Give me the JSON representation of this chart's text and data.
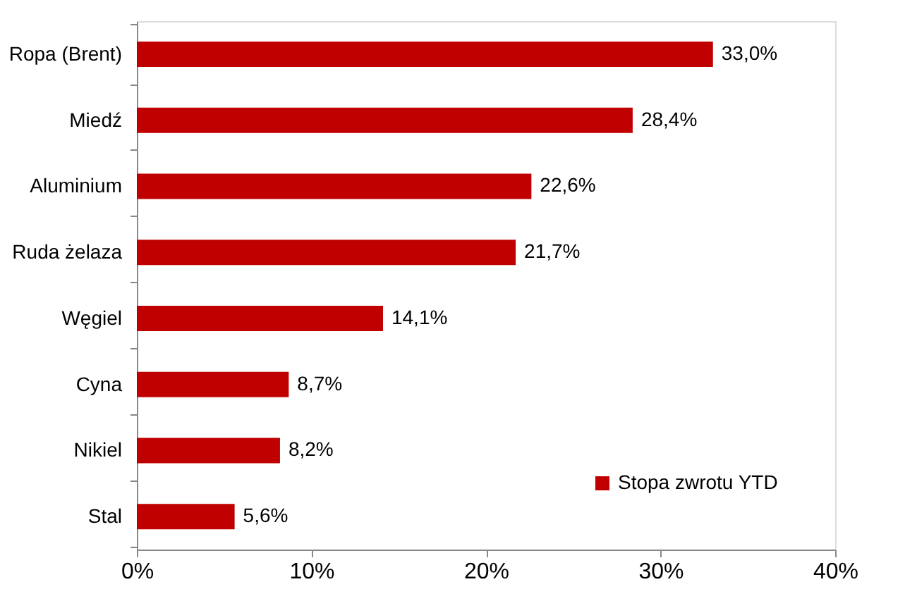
{
  "chart_data": {
    "type": "bar",
    "orientation": "horizontal",
    "categories": [
      "Ropa (Brent)",
      "Miedź",
      "Aluminium",
      "Ruda żelaza",
      "Węgiel",
      "Cyna",
      "Nikiel",
      "Stal"
    ],
    "series": [
      {
        "name": "Stopa zwrotu YTD",
        "color": "#c00000",
        "values": [
          33.0,
          28.4,
          22.6,
          21.7,
          14.1,
          8.7,
          8.2,
          5.6
        ],
        "value_labels": [
          "33,0%",
          "28,4%",
          "22,6%",
          "21,7%",
          "14,1%",
          "8,7%",
          "8,2%",
          "5,6%"
        ]
      }
    ],
    "xlim": [
      0,
      40
    ],
    "xticks": [
      {
        "value": 0,
        "label": "0%"
      },
      {
        "value": 10,
        "label": "10%"
      },
      {
        "value": 20,
        "label": "20%"
      },
      {
        "value": 30,
        "label": "30%"
      },
      {
        "value": 40,
        "label": "40%"
      }
    ],
    "legend": "bottom right",
    "grid": false
  }
}
